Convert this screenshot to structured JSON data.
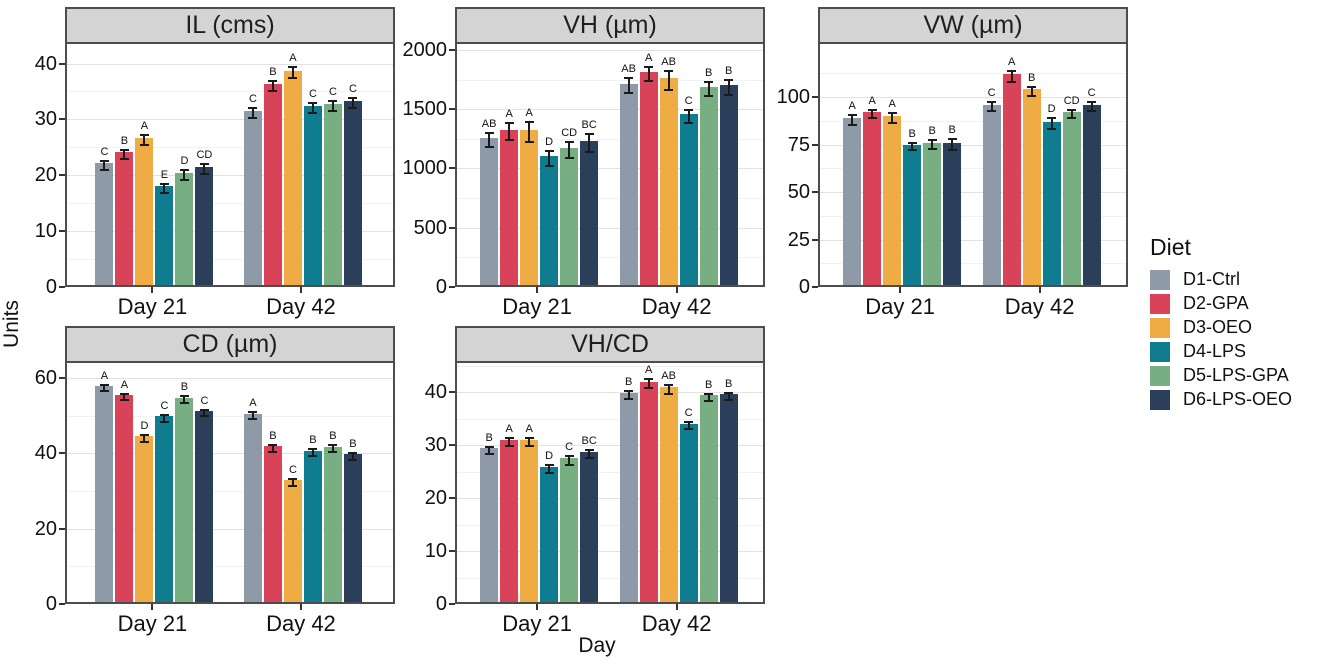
{
  "axes": {
    "y_label": "Units",
    "x_label": "Day"
  },
  "legend": {
    "title": "Diet",
    "items": [
      {
        "label": "D1-Ctrl",
        "color": "#8F9AA9"
      },
      {
        "label": "D2-GPA",
        "color": "#D8435A"
      },
      {
        "label": "D3-OEO",
        "color": "#EFAC45"
      },
      {
        "label": "D4-LPS",
        "color": "#107C8F"
      },
      {
        "label": "D5-LPS-GPA",
        "color": "#77AE82"
      },
      {
        "label": "D6-LPS-OEO",
        "color": "#2B3F5A"
      }
    ]
  },
  "chart_data": [
    {
      "type": "bar",
      "title": "IL (cms)",
      "categories": [
        "Day 21",
        "Day 42"
      ],
      "ylim": [
        0,
        43.5
      ],
      "yticks": [
        0,
        10,
        20,
        30,
        40
      ],
      "grid": true,
      "legend_position": "right",
      "series": [
        {
          "name": "D1-Ctrl",
          "values": [
            21.8,
            31.2
          ],
          "errors": [
            0.8,
            0.9
          ],
          "letters": [
            "C",
            "C"
          ]
        },
        {
          "name": "D2-GPA",
          "values": [
            23.8,
            35.9
          ],
          "errors": [
            0.8,
            0.9
          ],
          "letters": [
            "B",
            "B"
          ]
        },
        {
          "name": "D3-OEO",
          "values": [
            26.3,
            38.4
          ],
          "errors": [
            0.9,
            0.9
          ],
          "letters": [
            "A",
            "A"
          ]
        },
        {
          "name": "D4-LPS",
          "values": [
            17.7,
            32.0
          ],
          "errors": [
            0.8,
            0.9
          ],
          "letters": [
            "E",
            "C"
          ]
        },
        {
          "name": "D5-LPS-GPA",
          "values": [
            20.0,
            32.4
          ],
          "errors": [
            0.9,
            0.9
          ],
          "letters": [
            "D",
            "C"
          ]
        },
        {
          "name": "D6-LPS-OEO",
          "values": [
            21.2,
            33.0
          ],
          "errors": [
            0.9,
            0.9
          ],
          "letters": [
            "CD",
            "C"
          ]
        }
      ]
    },
    {
      "type": "bar",
      "title": "VH (µm)",
      "categories": [
        "Day 21",
        "Day 42"
      ],
      "ylim": [
        0,
        2050
      ],
      "yticks": [
        0,
        500,
        1000,
        1500,
        2000
      ],
      "grid": true,
      "series": [
        {
          "name": "D1-Ctrl",
          "values": [
            1240,
            1700
          ],
          "errors": [
            60,
            60
          ],
          "letters": [
            "AB",
            "AB"
          ]
        },
        {
          "name": "D2-GPA",
          "values": [
            1310,
            1800
          ],
          "errors": [
            70,
            60
          ],
          "letters": [
            "A",
            "A"
          ]
        },
        {
          "name": "D3-OEO",
          "values": [
            1310,
            1745
          ],
          "errors": [
            85,
            80
          ],
          "letters": [
            "A",
            "AB"
          ]
        },
        {
          "name": "D4-LPS",
          "values": [
            1085,
            1440
          ],
          "errors": [
            60,
            55
          ],
          "letters": [
            "D",
            "C"
          ]
        },
        {
          "name": "D5-LPS-GPA",
          "values": [
            1155,
            1670
          ],
          "errors": [
            65,
            60
          ],
          "letters": [
            "CD",
            "B"
          ]
        },
        {
          "name": "D6-LPS-OEO",
          "values": [
            1215,
            1685
          ],
          "errors": [
            75,
            65
          ],
          "letters": [
            "BC",
            "B"
          ]
        }
      ]
    },
    {
      "type": "bar",
      "title": "VW (µm)",
      "categories": [
        "Day 21",
        "Day 42"
      ],
      "ylim": [
        0,
        128
      ],
      "yticks": [
        0,
        25,
        50,
        75,
        100
      ],
      "grid": true,
      "series": [
        {
          "name": "D1-Ctrl",
          "values": [
            88,
            95
          ],
          "errors": [
            2.5,
            2.5
          ],
          "letters": [
            "A",
            "C"
          ]
        },
        {
          "name": "D2-GPA",
          "values": [
            91,
            111
          ],
          "errors": [
            2.0,
            3.0
          ],
          "letters": [
            "A",
            "A"
          ]
        },
        {
          "name": "D3-OEO",
          "values": [
            89,
            103
          ],
          "errors": [
            2.5,
            2.5
          ],
          "letters": [
            "A",
            "B"
          ]
        },
        {
          "name": "D4-LPS",
          "values": [
            74,
            86
          ],
          "errors": [
            2.0,
            3.0
          ],
          "letters": [
            "B",
            "D"
          ]
        },
        {
          "name": "D5-LPS-GPA",
          "values": [
            75,
            91
          ],
          "errors": [
            2.5,
            2.0
          ],
          "letters": [
            "B",
            "CD"
          ]
        },
        {
          "name": "D6-LPS-OEO",
          "values": [
            75,
            95
          ],
          "errors": [
            3.0,
            2.5
          ],
          "letters": [
            "B",
            "C"
          ]
        }
      ]
    },
    {
      "type": "bar",
      "title": "CD (µm)",
      "categories": [
        "Day 21",
        "Day 42"
      ],
      "ylim": [
        0,
        64
      ],
      "yticks": [
        0,
        20,
        40,
        60
      ],
      "grid": true,
      "series": [
        {
          "name": "D1-Ctrl",
          "values": [
            57.3,
            50.0
          ],
          "errors": [
            0.8,
            1.0
          ],
          "letters": [
            "A",
            "A"
          ]
        },
        {
          "name": "D2-GPA",
          "values": [
            55.0,
            41.3
          ],
          "errors": [
            0.8,
            1.0
          ],
          "letters": [
            "A",
            "B"
          ]
        },
        {
          "name": "D3-OEO",
          "values": [
            44.0,
            32.3
          ],
          "errors": [
            0.9,
            1.0
          ],
          "letters": [
            "D",
            "C"
          ]
        },
        {
          "name": "D4-LPS",
          "values": [
            49.3,
            40.2
          ],
          "errors": [
            1.0,
            0.9
          ],
          "letters": [
            "C",
            "B"
          ]
        },
        {
          "name": "D5-LPS-GPA",
          "values": [
            54.3,
            41.2
          ],
          "errors": [
            0.9,
            0.9
          ],
          "letters": [
            "B",
            "B"
          ]
        },
        {
          "name": "D6-LPS-OEO",
          "values": [
            50.8,
            39.2
          ],
          "errors": [
            0.8,
            1.0
          ],
          "letters": [
            "C",
            "B"
          ]
        }
      ]
    },
    {
      "type": "bar",
      "title": "VH/CD",
      "categories": [
        "Day 21",
        "Day 42"
      ],
      "ylim": [
        0,
        45.5
      ],
      "yticks": [
        0,
        10,
        20,
        30,
        40
      ],
      "grid": true,
      "series": [
        {
          "name": "D1-Ctrl",
          "values": [
            29.0,
            39.5
          ],
          "errors": [
            0.7,
            0.8
          ],
          "letters": [
            "B",
            "B"
          ]
        },
        {
          "name": "D2-GPA",
          "values": [
            30.6,
            41.6
          ],
          "errors": [
            0.8,
            0.8
          ],
          "letters": [
            "A",
            "A"
          ]
        },
        {
          "name": "D3-OEO",
          "values": [
            30.6,
            40.5
          ],
          "errors": [
            0.8,
            0.8
          ],
          "letters": [
            "A",
            "AB"
          ]
        },
        {
          "name": "D4-LPS",
          "values": [
            25.5,
            33.7
          ],
          "errors": [
            0.8,
            0.7
          ],
          "letters": [
            "D",
            "C"
          ]
        },
        {
          "name": "D5-LPS-GPA",
          "values": [
            27.1,
            39.0
          ],
          "errors": [
            0.8,
            0.7
          ],
          "letters": [
            "C",
            "B"
          ]
        },
        {
          "name": "D6-LPS-OEO",
          "values": [
            28.3,
            39.2
          ],
          "errors": [
            0.7,
            0.7
          ],
          "letters": [
            "BC",
            "B"
          ]
        }
      ]
    }
  ]
}
